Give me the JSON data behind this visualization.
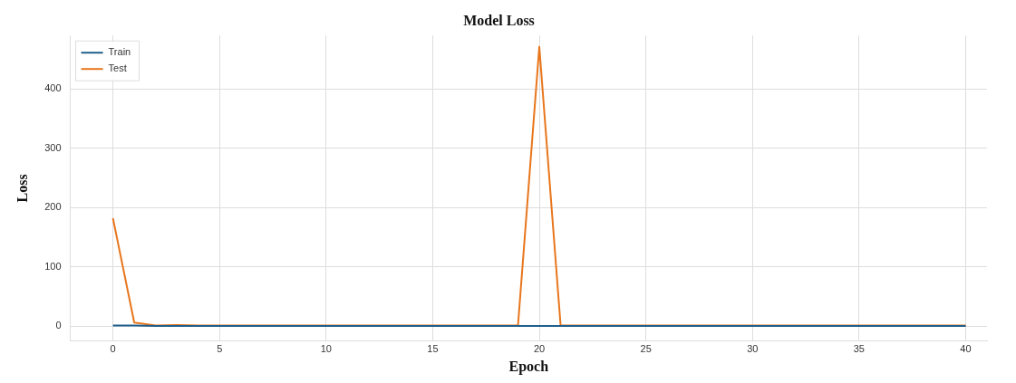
{
  "chart_data": {
    "type": "line",
    "title": "Model Loss",
    "xlabel": "Epoch",
    "ylabel": "Loss",
    "x": [
      0,
      1,
      2,
      3,
      4,
      5,
      6,
      7,
      8,
      9,
      10,
      11,
      12,
      13,
      14,
      15,
      16,
      17,
      18,
      19,
      20,
      21,
      22,
      23,
      24,
      25,
      26,
      27,
      28,
      29,
      30,
      31,
      32,
      33,
      34,
      35,
      36,
      37,
      38,
      39,
      40
    ],
    "series": [
      {
        "name": "Train",
        "color": "#1f5f8b",
        "values": [
          1,
          1,
          0.5,
          0.5,
          0.5,
          0.5,
          0.5,
          0.5,
          0.5,
          0.5,
          0.5,
          0.5,
          0.5,
          0.5,
          0.5,
          0.5,
          0.5,
          0.5,
          0.5,
          0.5,
          0.5,
          0.5,
          0.5,
          0.5,
          0.5,
          0.5,
          0.5,
          0.5,
          0.5,
          0.5,
          0.5,
          0.5,
          0.5,
          0.5,
          0.5,
          0.5,
          0.5,
          0.5,
          0.5,
          0.5,
          0.5
        ]
      },
      {
        "name": "Test",
        "color": "#e8761c",
        "values": [
          182,
          6,
          1,
          2,
          1,
          1,
          1,
          1,
          1,
          1,
          1,
          1,
          1,
          1,
          1,
          1,
          1,
          1,
          1,
          1,
          471,
          1,
          1,
          1,
          1,
          1,
          1,
          1,
          1,
          1,
          1,
          1,
          1,
          1,
          1,
          1,
          1,
          1,
          1,
          1,
          1
        ]
      }
    ],
    "xlim": [
      -2,
      41
    ],
    "xticks": [
      0,
      5,
      10,
      15,
      20,
      25,
      30,
      35,
      40
    ],
    "ylim": [
      -25,
      490
    ],
    "yticks": [
      0,
      100,
      200,
      300,
      400
    ],
    "grid": true,
    "legend": "top left",
    "marker": "none",
    "line_style": "solid"
  }
}
